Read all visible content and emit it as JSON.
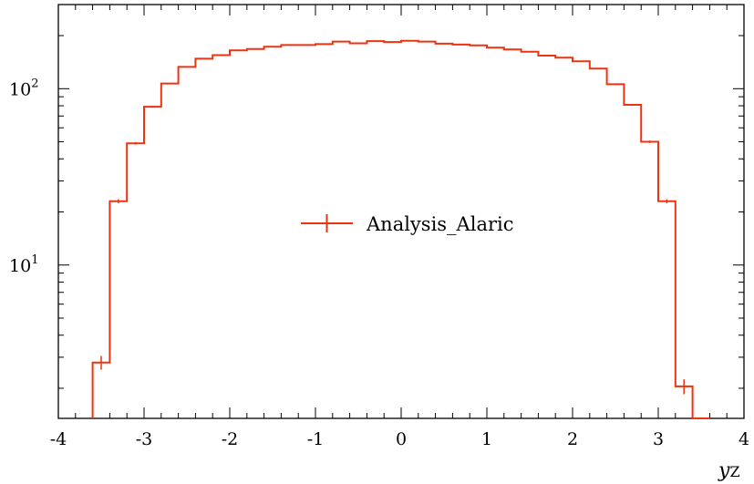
{
  "chart_data": {
    "type": "line",
    "drawstyle": "steps-mid",
    "title": "",
    "xlabel": "y_Z",
    "xlabel_main": "y",
    "xlabel_sub": "Z",
    "ylabel": "",
    "xlim": [
      -4,
      4
    ],
    "ylim": [
      1.35,
      300
    ],
    "yscale": "log",
    "grid": false,
    "legend_position": "center",
    "x_ticks": [
      -4,
      -3,
      -2,
      -1,
      0,
      1,
      2,
      3,
      4
    ],
    "x_tick_labels": [
      "-4",
      "-3",
      "-2",
      "-1",
      "0",
      "1",
      "2",
      "3",
      "4"
    ],
    "y_ticks": [
      10,
      100
    ],
    "y_tick_labels": [
      {
        "base": "10",
        "exp": "1"
      },
      {
        "base": "10",
        "exp": "2"
      }
    ],
    "series": [
      {
        "name": "Analysis_Alaric",
        "color": "#ee3311",
        "bin_edges": [
          -3.6,
          -3.4,
          -3.2,
          -3.0,
          -2.8,
          -2.6,
          -2.4,
          -2.2,
          -2.0,
          -1.8,
          -1.6,
          -1.4,
          -1.2,
          -1.0,
          -0.8,
          -0.6,
          -0.4,
          -0.2,
          0.0,
          0.2,
          0.4,
          0.6,
          0.8,
          1.0,
          1.2,
          1.4,
          1.6,
          1.8,
          2.0,
          2.2,
          2.4,
          2.6,
          2.8,
          3.0,
          3.2,
          3.4,
          3.6
        ],
        "x": [
          -3.5,
          -3.3,
          -3.1,
          -2.9,
          -2.7,
          -2.5,
          -2.3,
          -2.1,
          -1.9,
          -1.7,
          -1.5,
          -1.3,
          -1.1,
          -0.9,
          -0.7,
          -0.5,
          -0.3,
          -0.1,
          0.1,
          0.3,
          0.5,
          0.7,
          0.9,
          1.1,
          1.3,
          1.5,
          1.7,
          1.9,
          2.1,
          2.3,
          2.5,
          2.7,
          2.9,
          3.1,
          3.3,
          3.5
        ],
        "y": [
          2.8,
          23,
          49,
          79,
          107,
          133,
          148,
          155,
          165,
          168,
          173,
          177,
          177,
          179,
          185,
          181,
          186,
          184,
          187,
          185,
          180,
          178,
          176,
          171,
          167,
          162,
          154,
          150,
          143,
          130,
          106,
          81,
          50,
          23,
          2.05,
          1.2
        ],
        "yerr": [
          0.25,
          0.6,
          0.8,
          1.0,
          1.1,
          1.2,
          1.3,
          1.3,
          1.4,
          1.4,
          1.4,
          1.4,
          1.4,
          1.4,
          1.5,
          1.4,
          1.5,
          1.5,
          1.5,
          1.5,
          1.4,
          1.4,
          1.4,
          1.4,
          1.4,
          1.4,
          1.3,
          1.3,
          1.3,
          1.2,
          1.1,
          1.0,
          0.8,
          0.6,
          0.2,
          0.15
        ]
      }
    ]
  }
}
